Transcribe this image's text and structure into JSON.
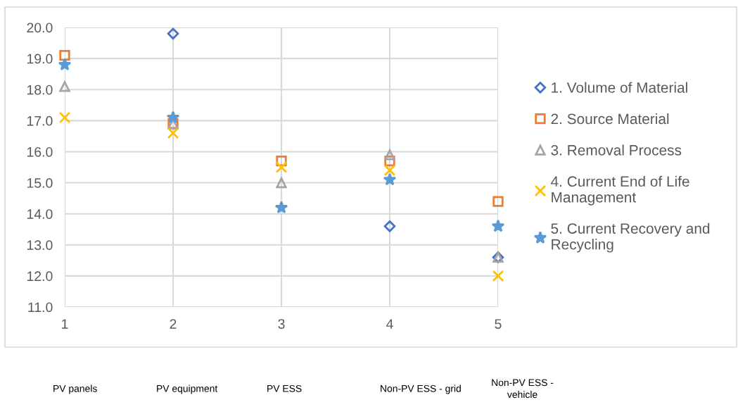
{
  "chart_data": {
    "type": "scatter",
    "x": [
      1,
      2,
      3,
      4,
      5
    ],
    "xlim": [
      1,
      5
    ],
    "xticks": [
      1,
      2,
      3,
      4,
      5
    ],
    "ylim": [
      11,
      20
    ],
    "yticks": [
      {
        "value": 11,
        "label": "11.0"
      },
      {
        "value": 12,
        "label": "12.0"
      },
      {
        "value": 13,
        "label": "13.0"
      },
      {
        "value": 14,
        "label": "14.0"
      },
      {
        "value": 15,
        "label": "15.0"
      },
      {
        "value": 16,
        "label": "16.0"
      },
      {
        "value": 17,
        "label": "17.0"
      },
      {
        "value": 18,
        "label": "18.0"
      },
      {
        "value": 19,
        "label": "19.0"
      },
      {
        "value": 20,
        "label": "20.0"
      }
    ],
    "grid": true,
    "legend": "right",
    "series": [
      {
        "name": "1. Volume of Material",
        "color": "#4472c4",
        "marker": "diamond",
        "values": [
          null,
          19.8,
          null,
          13.6,
          12.6
        ]
      },
      {
        "name": "2. Source Material",
        "color": "#ed7d31",
        "marker": "square",
        "values": [
          19.1,
          16.9,
          15.7,
          15.7,
          14.4
        ]
      },
      {
        "name": "3. Removal Process",
        "color": "#a5a5a5",
        "marker": "triangle",
        "values": [
          18.1,
          16.9,
          15.0,
          15.9,
          12.6
        ]
      },
      {
        "name": "4. Current End of Life Management",
        "color": "#ffc000",
        "marker": "cross",
        "values": [
          17.1,
          16.6,
          15.5,
          15.4,
          12.0
        ]
      },
      {
        "name": "5. Current Recovery and Recycling",
        "color": "#5b9bd5",
        "marker": "star",
        "values": [
          18.8,
          17.1,
          14.2,
          15.1,
          13.6
        ]
      }
    ],
    "annotations": [
      "PV panels",
      "PV equipment",
      "PV ESS",
      "Non-PV ESS - grid",
      "Non-PV ESS - vehicle"
    ]
  }
}
